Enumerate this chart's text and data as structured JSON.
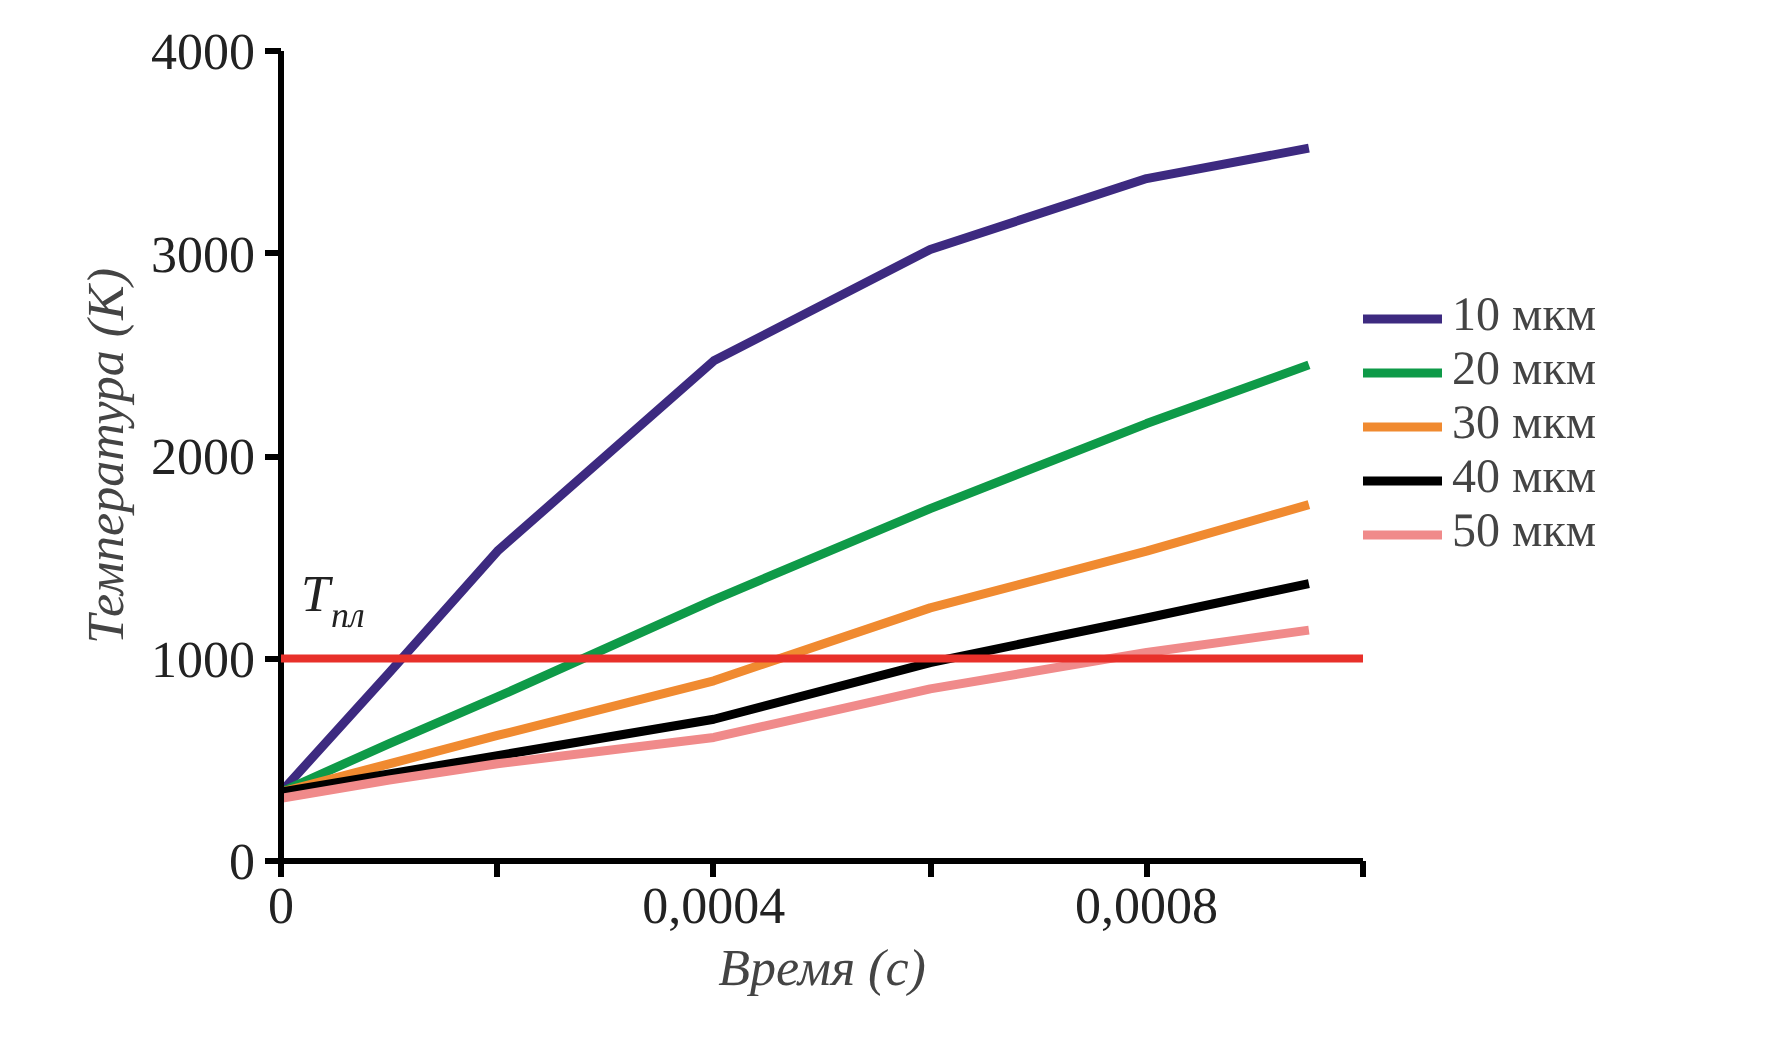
{
  "chart_data": {
    "type": "line",
    "xlabel": "Время (с)",
    "ylabel": "Температура (К)",
    "x": [
      0,
      0.0001,
      0.0002,
      0.0004,
      0.0006,
      0.0008,
      0.00095
    ],
    "series": [
      {
        "name": "10 мкм",
        "color": "#3d2a80",
        "values": [
          340,
          930,
          1530,
          2470,
          3020,
          3370,
          3520
        ]
      },
      {
        "name": "20 мкм",
        "color": "#0e9a48",
        "values": [
          340,
          580,
          810,
          1290,
          1740,
          2160,
          2450
        ]
      },
      {
        "name": "30 мкм",
        "color": "#f08a30",
        "values": [
          340,
          480,
          620,
          890,
          1250,
          1530,
          1760
        ]
      },
      {
        "name": "40 мкм",
        "color": "#000000",
        "values": [
          340,
          430,
          520,
          700,
          980,
          1200,
          1370
        ]
      },
      {
        "name": "50 мкм",
        "color": "#f08a8a",
        "values": [
          310,
          400,
          480,
          610,
          850,
          1030,
          1140
        ]
      }
    ],
    "xlim": [
      0,
      0.001
    ],
    "ylim": [
      0,
      4000
    ],
    "xticks": [
      0,
      {
        "value": 0.0002,
        "label": null
      },
      {
        "value": 0.0004,
        "label": "0,0004"
      },
      {
        "value": 0.0006,
        "label": null
      },
      {
        "value": 0.0008,
        "label": "0,0008"
      },
      {
        "value": 0.001,
        "label": null
      }
    ],
    "yticks": [
      0,
      1000,
      2000,
      3000,
      4000
    ],
    "ref_lines": [
      {
        "axis": "y",
        "value": 1000,
        "label": "T$_{пл}$",
        "color": "#e8302a"
      }
    ],
    "grid": false,
    "legend": "right",
    "marker": "none",
    "line_style": "solid"
  }
}
